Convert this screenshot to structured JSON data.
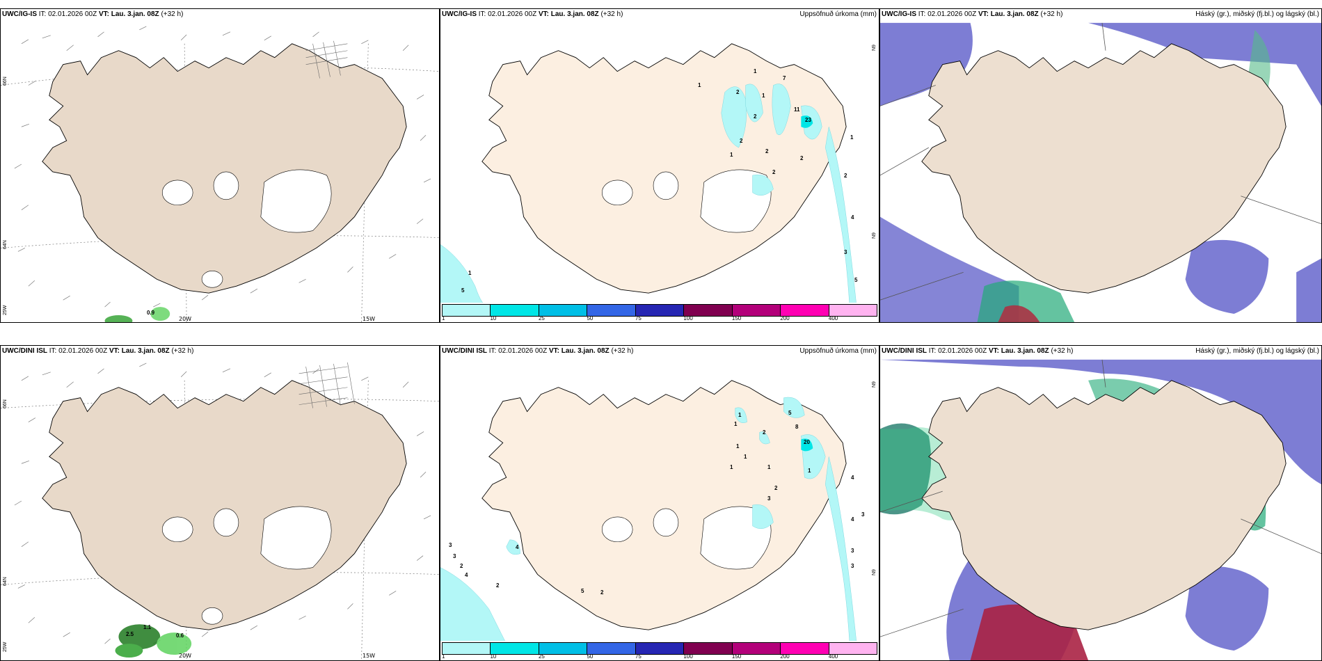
{
  "panels": {
    "r1c1": {
      "title_bold": "UWC/IG-IS",
      "title_it": "IT: 02.01.2026 00Z",
      "title_vt_label": "VT:",
      "title_vt": "Lau. 3.jan. 08Z",
      "title_lead": "(+32 h)",
      "right": ""
    },
    "r1c2": {
      "title_bold": "UWC/IG-IS",
      "title_it": "IT: 02.01.2026 00Z",
      "title_vt_label": "VT:",
      "title_vt": "Lau. 3.jan. 08Z",
      "title_lead": "(+32 h)",
      "right": "Uppsöfnuð úrkoma (mm)"
    },
    "r1c3": {
      "title_bold": "UWC/IG-IS",
      "title_it": "IT: 02.01.2026 00Z",
      "title_vt_label": "VT:",
      "title_vt": "Lau. 3.jan. 08Z",
      "title_lead": "(+32 h)",
      "right": "Háský (gr.), miðský (fj.bl.) og lágský (bl.)"
    },
    "r2c1": {
      "title_bold": "UWC/DINI ISL",
      "title_it": "IT: 02.01.2026 00Z",
      "title_vt_label": "VT:",
      "title_vt": "Lau. 3.jan. 08Z",
      "title_lead": "(+32 h)",
      "right": ""
    },
    "r2c2": {
      "title_bold": "UWC/DINI ISL",
      "title_it": "IT: 02.01.2026 00Z",
      "title_vt_label": "VT:",
      "title_vt": "Lau. 3.jan. 08Z",
      "title_lead": "(+32 h)",
      "right": "Uppsöfnuð úrkoma (mm)"
    },
    "r2c3": {
      "title_bold": "UWC/DINI ISL",
      "title_it": "IT: 02.01.2026 00Z",
      "title_vt_label": "VT:",
      "title_vt": "Lau. 3.jan. 08Z",
      "title_lead": "(+32 h)",
      "right": "Háský (gr.), miðský (fj.bl.) og lágský (bl.)"
    }
  },
  "grid_labels": {
    "lat66": "66N",
    "lat64": "64N",
    "lat_short": "N9",
    "lat25": "25W",
    "lon20": "20W",
    "lon15": "15W",
    "r1_precip": "0.9",
    "r2_precip_a": "2.5",
    "r2_precip_b": "1.1",
    "r2_precip_c": "0.6"
  },
  "colorbar": {
    "colors": [
      "#b3f7f7",
      "#00e6e6",
      "#00bfe6",
      "#3366e6",
      "#2626b3",
      "#800050",
      "#b3007a",
      "#ff00b3",
      "#ffb3f0"
    ],
    "ticks": [
      "1",
      "10",
      "25",
      "50",
      "75",
      "100",
      "150",
      "200",
      "400"
    ]
  },
  "precip_values_r1": [
    "1",
    "1",
    "2",
    "1",
    "7",
    "2",
    "11",
    "2",
    "23",
    "2",
    "1",
    "2",
    "1",
    "2",
    "2",
    "4",
    "3",
    "5",
    "1",
    "5"
  ],
  "precip_values_r2": [
    "1",
    "1",
    "5",
    "8",
    "2",
    "20",
    "1",
    "1",
    "1",
    "1",
    "2",
    "1",
    "4",
    "3",
    "4",
    "3",
    "3",
    "3",
    "3",
    "4",
    "3",
    "2",
    "4",
    "2",
    "5",
    "2"
  ]
}
